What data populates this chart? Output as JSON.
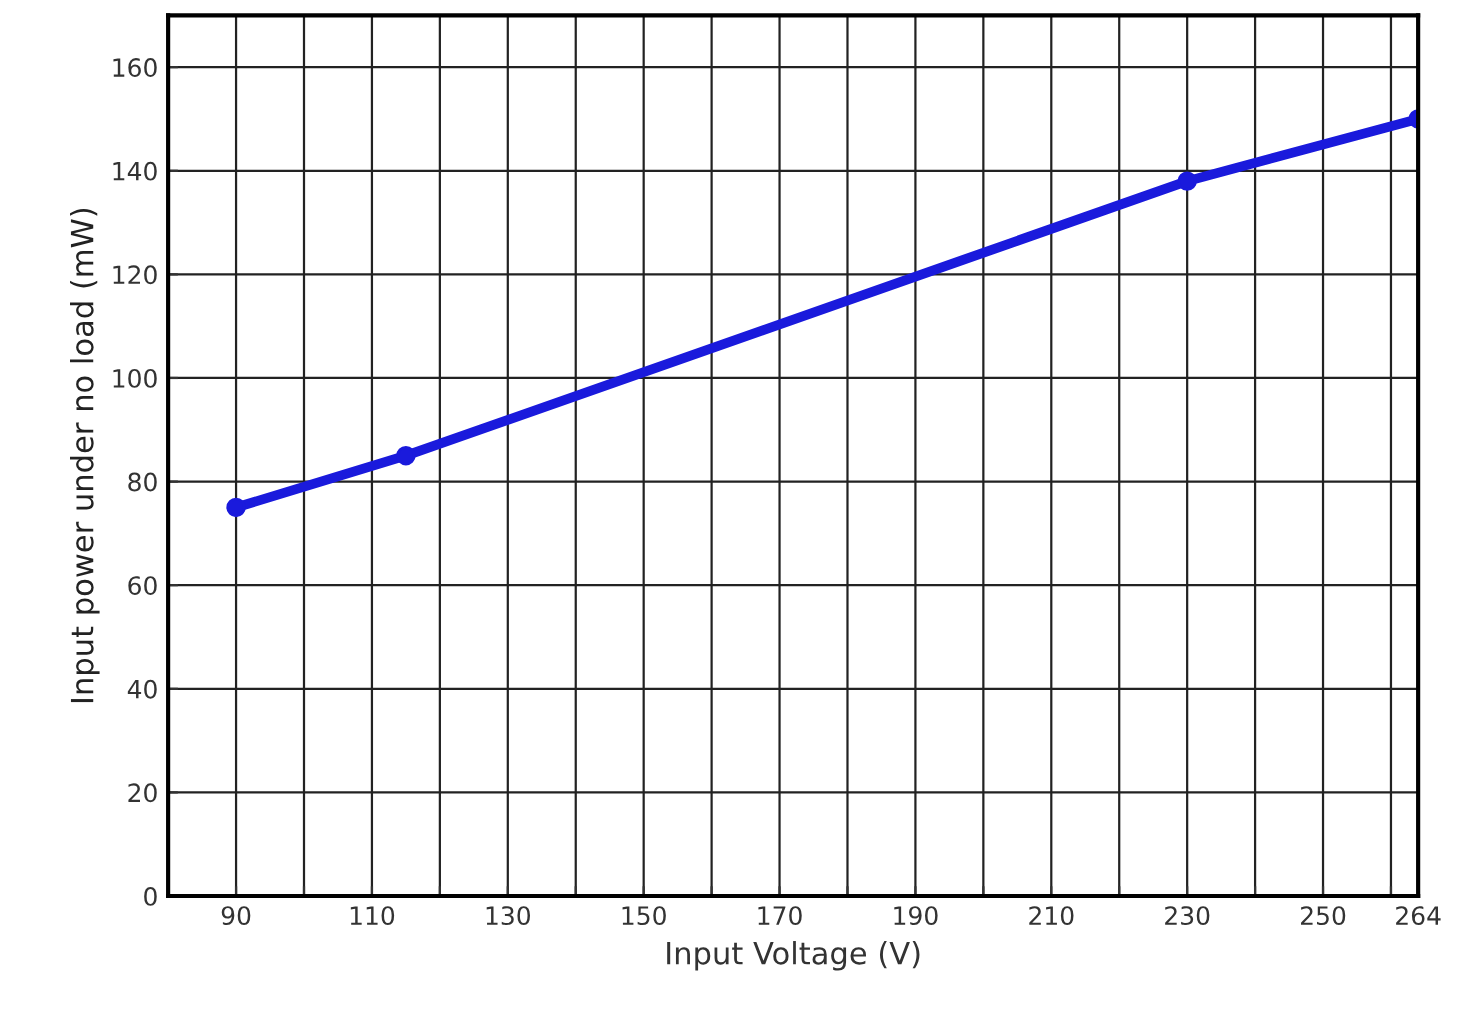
{
  "chart_data": {
    "type": "line",
    "xlabel": "Input Voltage (V)",
    "ylabel": "Input power under no load (mW)",
    "series": [
      {
        "x": [
          90,
          115,
          230,
          264
        ],
        "values": [
          75,
          85,
          138,
          150
        ],
        "color": "#1a1adc"
      }
    ],
    "xlim": [
      80,
      264
    ],
    "xticks": [
      90,
      {
        "value": 100,
        "label": null
      },
      110,
      {
        "value": 120,
        "label": null
      },
      130,
      {
        "value": 140,
        "label": null
      },
      150,
      {
        "value": 160,
        "label": null
      },
      170,
      {
        "value": 180,
        "label": null
      },
      190,
      {
        "value": 200,
        "label": null
      },
      210,
      {
        "value": 220,
        "label": null
      },
      230,
      {
        "value": 240,
        "label": null
      },
      250,
      {
        "value": 260,
        "label": null
      },
      264
    ],
    "ylim": [
      0,
      170
    ],
    "yticks": [
      0,
      20,
      40,
      60,
      80,
      100,
      120,
      140,
      160
    ],
    "grid": true,
    "marker": "circle",
    "line_style": "solid"
  }
}
